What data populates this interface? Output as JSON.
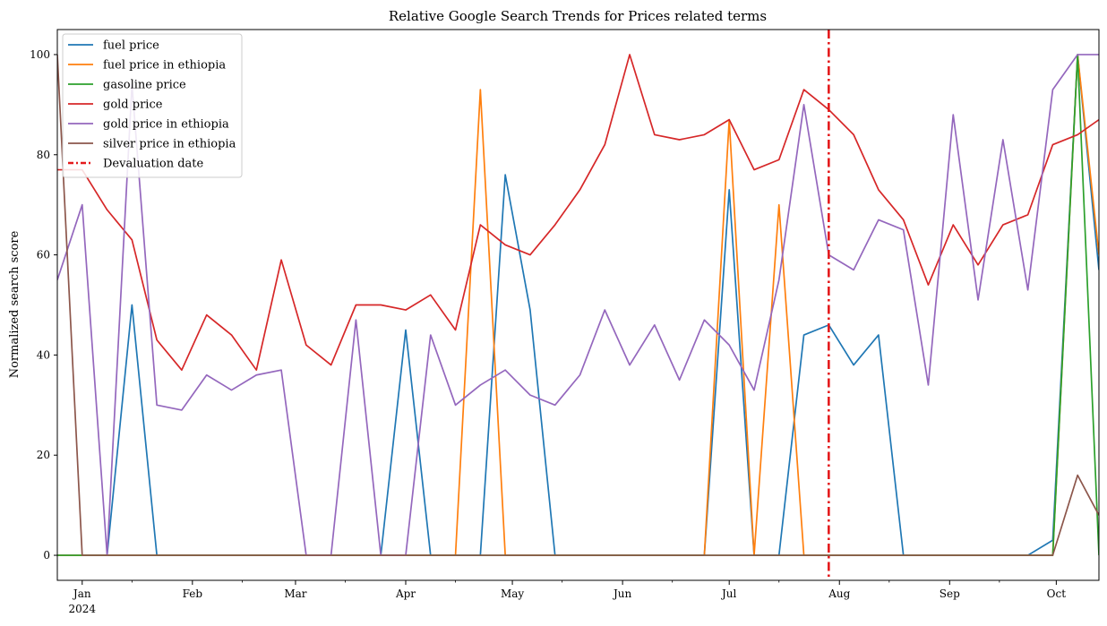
{
  "chart_data": {
    "type": "line",
    "title": "Relative Google Search Trends for Prices related terms",
    "xlabel": "",
    "ylabel": "Normalized search score",
    "ylim": [
      -5,
      105
    ],
    "xlim": [
      "2023-12-25",
      "2024-10-13"
    ],
    "y_ticks": [
      0,
      20,
      40,
      60,
      80,
      100
    ],
    "x_ticks": [
      {
        "date": "2024-01-01",
        "label": "Jan",
        "sublabel": "2024"
      },
      {
        "date": "2024-02-01",
        "label": "Feb",
        "sublabel": ""
      },
      {
        "date": "2024-03-01",
        "label": "Mar",
        "sublabel": ""
      },
      {
        "date": "2024-04-01",
        "label": "Apr",
        "sublabel": ""
      },
      {
        "date": "2024-05-01",
        "label": "May",
        "sublabel": ""
      },
      {
        "date": "2024-06-01",
        "label": "Jun",
        "sublabel": ""
      },
      {
        "date": "2024-07-01",
        "label": "Jul",
        "sublabel": ""
      },
      {
        "date": "2024-08-01",
        "label": "Aug",
        "sublabel": ""
      },
      {
        "date": "2024-09-01",
        "label": "Sep",
        "sublabel": ""
      },
      {
        "date": "2024-10-01",
        "label": "Oct",
        "sublabel": ""
      }
    ],
    "x": [
      "2023-12-25",
      "2024-01-01",
      "2024-01-08",
      "2024-01-15",
      "2024-01-22",
      "2024-01-29",
      "2024-02-05",
      "2024-02-12",
      "2024-02-19",
      "2024-02-26",
      "2024-03-04",
      "2024-03-11",
      "2024-03-18",
      "2024-03-25",
      "2024-04-01",
      "2024-04-08",
      "2024-04-15",
      "2024-04-22",
      "2024-04-29",
      "2024-05-06",
      "2024-05-13",
      "2024-05-20",
      "2024-05-27",
      "2024-06-03",
      "2024-06-10",
      "2024-06-17",
      "2024-06-24",
      "2024-07-01",
      "2024-07-08",
      "2024-07-15",
      "2024-07-22",
      "2024-07-29",
      "2024-08-05",
      "2024-08-12",
      "2024-08-19",
      "2024-08-26",
      "2024-09-02",
      "2024-09-09",
      "2024-09-16",
      "2024-09-23",
      "2024-09-30",
      "2024-10-07",
      "2024-10-13"
    ],
    "series": [
      {
        "name": "fuel price",
        "color": "#1f77b4",
        "values": [
          0,
          0,
          0,
          50,
          0,
          0,
          0,
          0,
          0,
          0,
          0,
          0,
          0,
          0,
          45,
          0,
          0,
          0,
          76,
          49,
          0,
          0,
          0,
          0,
          0,
          0,
          0,
          73,
          0,
          0,
          44,
          46,
          38,
          44,
          0,
          0,
          0,
          0,
          0,
          0,
          3,
          100,
          57
        ]
      },
      {
        "name": "fuel price in ethiopia",
        "color": "#ff7f0e",
        "values": [
          0,
          0,
          0,
          0,
          0,
          0,
          0,
          0,
          0,
          0,
          0,
          0,
          0,
          0,
          0,
          0,
          0,
          93,
          0,
          0,
          0,
          0,
          0,
          0,
          0,
          0,
          0,
          87,
          0,
          70,
          0,
          0,
          0,
          0,
          0,
          0,
          0,
          0,
          0,
          0,
          0,
          100,
          60
        ]
      },
      {
        "name": "gasoline price",
        "color": "#2ca02c",
        "values": [
          0,
          0,
          0,
          0,
          0,
          0,
          0,
          0,
          0,
          0,
          0,
          0,
          0,
          0,
          0,
          0,
          0,
          0,
          0,
          0,
          0,
          0,
          0,
          0,
          0,
          0,
          0,
          0,
          0,
          0,
          0,
          0,
          0,
          0,
          0,
          0,
          0,
          0,
          0,
          0,
          0,
          100,
          0
        ]
      },
      {
        "name": "gold price",
        "color": "#d62728",
        "values": [
          77,
          77,
          69,
          63,
          43,
          37,
          48,
          44,
          37,
          59,
          42,
          38,
          50,
          50,
          49,
          52,
          45,
          66,
          62,
          60,
          66,
          73,
          82,
          100,
          84,
          83,
          84,
          87,
          77,
          79,
          93,
          89,
          84,
          73,
          67,
          54,
          66,
          58,
          66,
          68,
          82,
          84,
          87
        ]
      },
      {
        "name": "gold price in ethiopia",
        "color": "#9467bd",
        "values": [
          55,
          70,
          0,
          94,
          30,
          29,
          36,
          33,
          36,
          37,
          0,
          0,
          47,
          0,
          0,
          44,
          30,
          34,
          37,
          32,
          30,
          36,
          49,
          38,
          46,
          35,
          47,
          42,
          33,
          55,
          90,
          60,
          57,
          67,
          65,
          34,
          88,
          51,
          83,
          53,
          93,
          100,
          100
        ]
      },
      {
        "name": "silver price in ethiopia",
        "color": "#8c564b",
        "values": [
          100,
          0,
          0,
          0,
          0,
          0,
          0,
          0,
          0,
          0,
          0,
          0,
          0,
          0,
          0,
          0,
          0,
          0,
          0,
          0,
          0,
          0,
          0,
          0,
          0,
          0,
          0,
          0,
          0,
          0,
          0,
          0,
          0,
          0,
          0,
          0,
          0,
          0,
          0,
          0,
          0,
          16,
          8
        ]
      }
    ],
    "vline": {
      "date": "2024-07-29",
      "name": "Devaluation date",
      "color": "#e41a1c",
      "style": "dashdot"
    },
    "legend_position": "upper-left",
    "grid": false
  }
}
